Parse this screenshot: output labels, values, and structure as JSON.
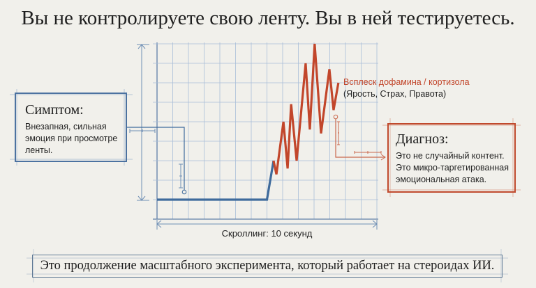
{
  "title": "Вы не контролируете свою ленту. Вы в ней тестируетесь.",
  "symptom": {
    "heading": "Симптом:",
    "text": "Внезапная, сильная эмоция при просмотре ленты."
  },
  "diagnosis": {
    "heading": "Диагноз:",
    "text": "Это не случайный контент. Это микро-таргетированная эмоциональная атака."
  },
  "spike_label": {
    "line1": "Всплеск дофамина / кортизола",
    "line2": "(Ярость, Страх, Правота)"
  },
  "footer": "Это продолжение масштабного эксперимента, который работает на стероидах ИИ.",
  "colors": {
    "blue": "#3f6b9c",
    "red": "#c2462b",
    "grid": "#a9bed8"
  },
  "chart_data": {
    "type": "line",
    "xlabel": "Скроллинг: 10 секунд",
    "xlim": [
      0,
      10
    ],
    "ylim": [
      0,
      9
    ],
    "grid": true,
    "series": [
      {
        "name": "calm",
        "color": "#3f6b9c",
        "points": [
          [
            0,
            1
          ],
          [
            5,
            1
          ],
          [
            5.3,
            3
          ]
        ]
      },
      {
        "name": "spike",
        "color": "#c2462b",
        "points": [
          [
            5.3,
            3
          ],
          [
            5.43,
            2.3
          ],
          [
            5.75,
            5
          ],
          [
            5.94,
            2.6
          ],
          [
            6.1,
            5.9
          ],
          [
            6.35,
            3
          ],
          [
            6.76,
            8
          ],
          [
            6.95,
            4.6
          ],
          [
            7.17,
            9
          ],
          [
            7.46,
            4.4
          ],
          [
            7.84,
            7.7
          ],
          [
            8.03,
            5.6
          ],
          [
            8.25,
            7
          ]
        ]
      }
    ]
  }
}
